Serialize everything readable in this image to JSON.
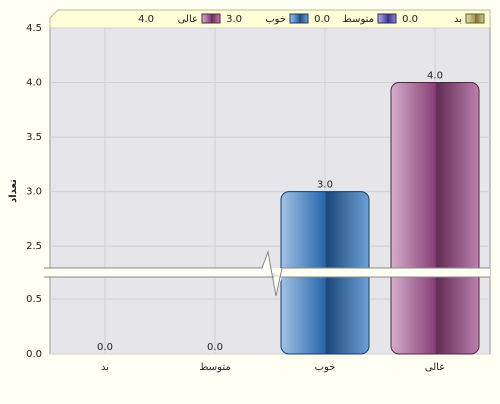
{
  "chart_data": {
    "type": "bar",
    "y_label": "تعداد",
    "categories": [
      "بد",
      "متوسط",
      "خوب",
      "عالی"
    ],
    "values": [
      0,
      0,
      3,
      4
    ],
    "value_labels": [
      "0.0",
      "0.0",
      "3.0",
      "4.0"
    ],
    "colors": [
      "#c8b45a",
      "#5a4fc8",
      "#2f78c8",
      "#a04a8c"
    ],
    "y_segments": [
      {
        "ylim": [
          0,
          0.7
        ],
        "yticks": [
          {
            "value": 0,
            "label": "0.0"
          },
          0.5
        ]
      },
      {
        "ylim": [
          2.3,
          4.5
        ],
        "yticks": [
          2.5,
          {
            "value": 3,
            "label": "3.0"
          },
          3.5,
          {
            "value": 4,
            "label": "4.0"
          },
          4.5
        ]
      }
    ],
    "grid": true,
    "legend": "top"
  }
}
